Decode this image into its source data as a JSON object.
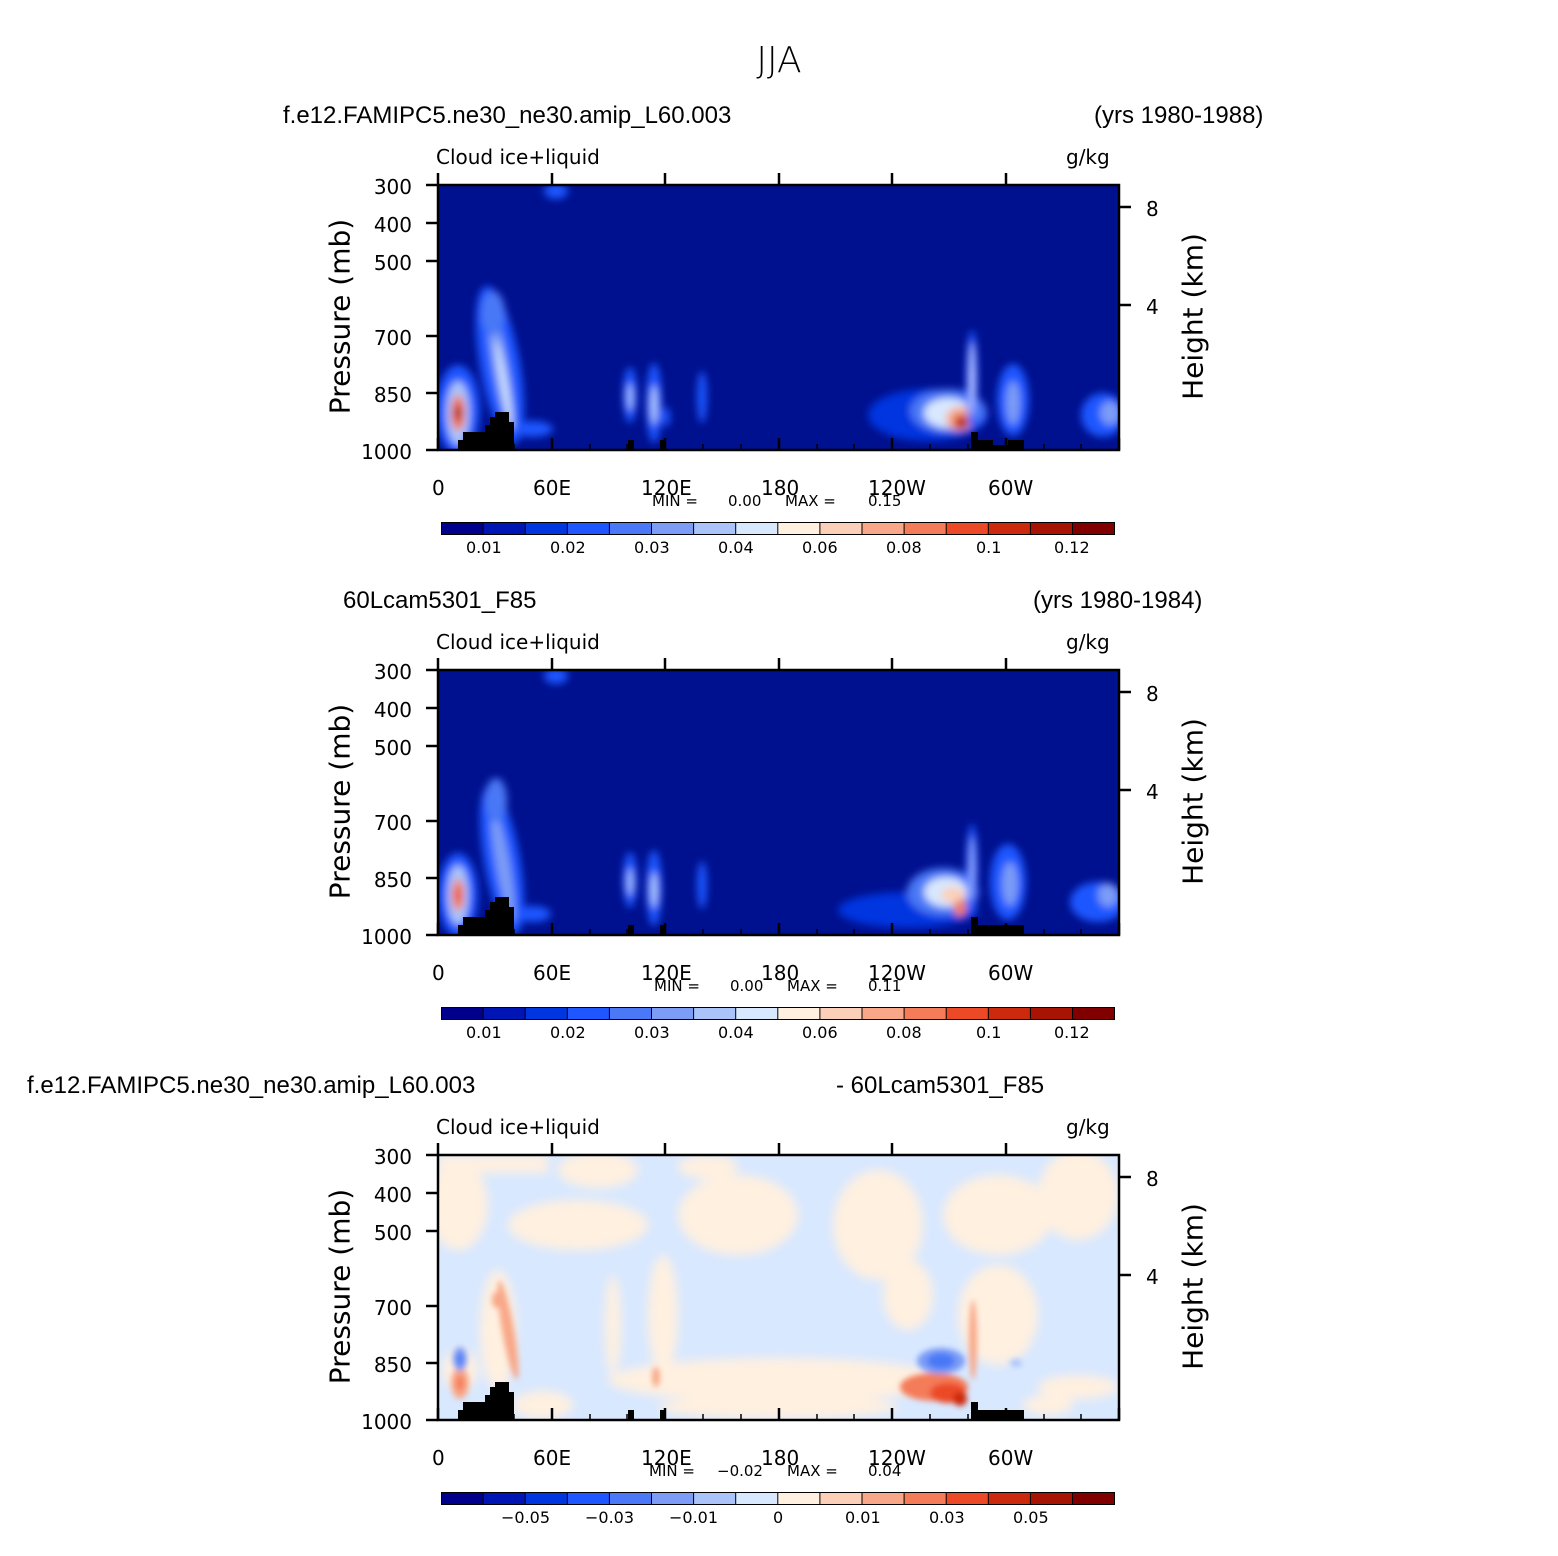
{
  "title": "JJA",
  "panels": [
    {
      "case_left": "f.e12.FAMIPC5.ne30_ne30.amip_L60.003",
      "case_right": "(yrs 1980-1988)",
      "var_label": "Cloud ice+liquid",
      "units": "g/kg",
      "min_label": "MIN =",
      "min_value": "0.00",
      "max_label": "MAX =",
      "max_value": "0.15",
      "colorbar_labels": [
        "0.01",
        "0.02",
        "0.03",
        "0.04",
        "0.06",
        "0.08",
        "0.1",
        "0.12"
      ]
    },
    {
      "case_left": "60Lcam5301_F85",
      "case_right": "(yrs 1980-1984)",
      "var_label": "Cloud ice+liquid",
      "units": "g/kg",
      "min_label": "MIN =",
      "min_value": "0.00",
      "max_label": "MAX =",
      "max_value": "0.11",
      "colorbar_labels": [
        "0.01",
        "0.02",
        "0.03",
        "0.04",
        "0.06",
        "0.08",
        "0.1",
        "0.12"
      ]
    },
    {
      "case_left": "f.e12.FAMIPC5.ne30_ne30.amip_L60.003",
      "case_right": "- 60Lcam5301_F85",
      "var_label": "Cloud ice+liquid",
      "units": "g/kg",
      "min_label": "MIN =",
      "min_value": "−0.02",
      "max_label": "MAX =",
      "max_value": "0.04",
      "colorbar_labels": [
        "−0.05",
        "−0.03",
        "−0.01",
        "0",
        "0.01",
        "0.03",
        "0.05"
      ]
    }
  ],
  "axes": {
    "left_title": "Pressure (mb)",
    "right_title": "Height (km)",
    "pressure_ticks": [
      "300",
      "400",
      "500",
      "700",
      "850",
      "1000"
    ],
    "height_ticks": [
      "8",
      "4"
    ],
    "lon_ticks": [
      "0",
      "60E",
      "120E",
      "180",
      "120W",
      "60W"
    ]
  },
  "colors": {
    "full_palette": [
      "#00008c",
      "#0016b4",
      "#0036e0",
      "#1e56ff",
      "#4a78f6",
      "#7c9cf6",
      "#aac4fa",
      "#d8e8ff",
      "#fff0e0",
      "#fcd0b8",
      "#f8a888",
      "#f47c58",
      "#ec4a26",
      "#cc2a0c",
      "#a81404",
      "#800000"
    ],
    "background_field": "#00118f",
    "diff_negative": "#d8e8ff",
    "diff_positive": "#fff0e0",
    "topography": "#000000"
  },
  "chart_data": [
    {
      "type": "heatmap",
      "x_range": [
        0,
        360
      ],
      "y_range_mb": [
        1000,
        300
      ],
      "levels": [
        0.01,
        0.02,
        0.03,
        0.04,
        0.06,
        0.08,
        0.1,
        0.12
      ],
      "min": 0.0,
      "max": 0.15,
      "features": [
        {
          "lon": 10,
          "p_mb": 880,
          "value": 0.15
        },
        {
          "lon": 35,
          "p_mb": 750,
          "value": 0.04
        },
        {
          "lon": 100,
          "p_mb": 860,
          "value": 0.03
        },
        {
          "lon": 113,
          "p_mb": 860,
          "value": 0.04
        },
        {
          "lon": 137,
          "p_mb": 860,
          "value": 0.02
        },
        {
          "lon": 280,
          "p_mb": 900,
          "value": 0.12
        },
        {
          "lon": 290,
          "p_mb": 720,
          "value": 0.04
        },
        {
          "lon": 350,
          "p_mb": 900,
          "value": 0.03
        }
      ]
    },
    {
      "type": "heatmap",
      "x_range": [
        0,
        360
      ],
      "y_range_mb": [
        1000,
        300
      ],
      "levels": [
        0.01,
        0.02,
        0.03,
        0.04,
        0.06,
        0.08,
        0.1,
        0.12
      ],
      "min": 0.0,
      "max": 0.11,
      "features": [
        {
          "lon": 10,
          "p_mb": 880,
          "value": 0.1
        },
        {
          "lon": 35,
          "p_mb": 780,
          "value": 0.03
        },
        {
          "lon": 100,
          "p_mb": 860,
          "value": 0.03
        },
        {
          "lon": 113,
          "p_mb": 860,
          "value": 0.04
        },
        {
          "lon": 137,
          "p_mb": 860,
          "value": 0.02
        },
        {
          "lon": 280,
          "p_mb": 900,
          "value": 0.08
        },
        {
          "lon": 290,
          "p_mb": 740,
          "value": 0.03
        },
        {
          "lon": 350,
          "p_mb": 910,
          "value": 0.02
        }
      ]
    },
    {
      "type": "heatmap",
      "x_range": [
        0,
        360
      ],
      "y_range_mb": [
        1000,
        300
      ],
      "levels": [
        -0.05,
        -0.03,
        -0.01,
        0,
        0.01,
        0.03,
        0.05
      ],
      "min": -0.02,
      "max": 0.04,
      "features": [
        {
          "lon": 10,
          "p_mb": 920,
          "value": 0.02
        },
        {
          "lon": 10,
          "p_mb": 840,
          "value": -0.02
        },
        {
          "lon": 37,
          "p_mb": 800,
          "value": 0.01
        },
        {
          "lon": 280,
          "p_mb": 930,
          "value": 0.04
        },
        {
          "lon": 270,
          "p_mb": 860,
          "value": -0.02
        }
      ]
    }
  ]
}
